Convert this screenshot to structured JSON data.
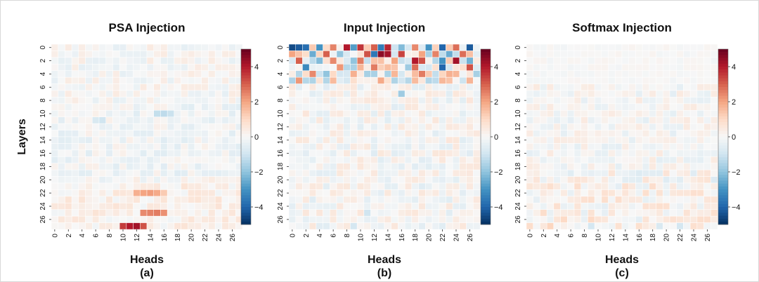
{
  "figure": {
    "ylabel_shared": "Layers",
    "colorbar_ticks": [
      "4",
      "2",
      "0",
      "−2",
      "−4"
    ],
    "colorbar_range": [
      -5,
      5
    ],
    "colormap": [
      "#053061",
      "#2166ac",
      "#4393c3",
      "#92c5de",
      "#d1e5f0",
      "#f7f7f7",
      "#fddbc7",
      "#f4a582",
      "#d6604d",
      "#b2182b",
      "#67001f"
    ]
  },
  "chart_data": [
    {
      "type": "heatmap",
      "title": "PSA Injection",
      "xlabel": "Heads",
      "sublabel": "(a)",
      "ylabel": "Layers",
      "x_ticks": [
        "0",
        "2",
        "4",
        "6",
        "8",
        "10",
        "12",
        "14",
        "16",
        "18",
        "20",
        "22",
        "24",
        "26"
      ],
      "y_ticks": [
        "0",
        "2",
        "4",
        "6",
        "8",
        "10",
        "12",
        "14",
        "16",
        "18",
        "20",
        "22",
        "24",
        "26"
      ],
      "rows": 28,
      "cols": 28,
      "value_range": [
        -5,
        5
      ],
      "cells": [
        {
          "layer": 27,
          "head": 10,
          "value": 3.5
        },
        {
          "layer": 27,
          "head": 11,
          "value": 4.0
        },
        {
          "layer": 27,
          "head": 12,
          "value": 4.2
        },
        {
          "layer": 27,
          "head": 13,
          "value": 3.2
        },
        {
          "layer": 25,
          "head": 13,
          "value": 2.4
        },
        {
          "layer": 25,
          "head": 14,
          "value": 2.5
        },
        {
          "layer": 25,
          "head": 15,
          "value": 2.6
        },
        {
          "layer": 25,
          "head": 16,
          "value": 2.3
        },
        {
          "layer": 22,
          "head": 12,
          "value": 1.8
        },
        {
          "layer": 22,
          "head": 13,
          "value": 2.0
        },
        {
          "layer": 22,
          "head": 14,
          "value": 2.1
        },
        {
          "layer": 22,
          "head": 15,
          "value": 1.9
        },
        {
          "layer": 22,
          "head": 16,
          "value": 1.3
        },
        {
          "layer": 10,
          "head": 15,
          "value": -1.2
        },
        {
          "layer": 10,
          "head": 16,
          "value": -1.3
        },
        {
          "layer": 10,
          "head": 17,
          "value": -1.1
        },
        {
          "layer": 11,
          "head": 7,
          "value": -1.0
        },
        {
          "layer": 11,
          "head": 6,
          "value": -0.8
        }
      ]
    },
    {
      "type": "heatmap",
      "title": "Input Injection",
      "xlabel": "Heads",
      "sublabel": "(b)",
      "x_ticks": [
        "0",
        "2",
        "4",
        "6",
        "8",
        "10",
        "12",
        "14",
        "16",
        "18",
        "20",
        "22",
        "24",
        "26"
      ],
      "y_ticks": [
        "0",
        "2",
        "4",
        "6",
        "8",
        "10",
        "12",
        "14",
        "16",
        "18",
        "20",
        "22",
        "24",
        "26"
      ],
      "rows": 28,
      "cols": 28,
      "value_range": [
        -5,
        5
      ],
      "cells": [
        {
          "layer": 0,
          "head": 0,
          "value": -4.5
        },
        {
          "layer": 0,
          "head": 1,
          "value": -4.2
        },
        {
          "layer": 0,
          "head": 2,
          "value": -3.8
        },
        {
          "layer": 0,
          "head": 4,
          "value": -3.0
        },
        {
          "layer": 0,
          "head": 6,
          "value": 2.5
        },
        {
          "layer": 0,
          "head": 8,
          "value": 4.0
        },
        {
          "layer": 0,
          "head": 9,
          "value": -2.8
        },
        {
          "layer": 0,
          "head": 10,
          "value": 3.6
        },
        {
          "layer": 0,
          "head": 12,
          "value": 3.0
        },
        {
          "layer": 0,
          "head": 13,
          "value": -3.5
        },
        {
          "layer": 0,
          "head": 14,
          "value": 3.8
        },
        {
          "layer": 0,
          "head": 16,
          "value": -2.2
        },
        {
          "layer": 0,
          "head": 18,
          "value": 2.4
        },
        {
          "layer": 0,
          "head": 20,
          "value": -3.0
        },
        {
          "layer": 0,
          "head": 22,
          "value": -4.0
        },
        {
          "layer": 0,
          "head": 24,
          "value": 2.8
        },
        {
          "layer": 0,
          "head": 26,
          "value": -4.2
        },
        {
          "layer": 1,
          "head": 0,
          "value": 2.0
        },
        {
          "layer": 1,
          "head": 3,
          "value": -2.5
        },
        {
          "layer": 1,
          "head": 5,
          "value": 3.0
        },
        {
          "layer": 1,
          "head": 7,
          "value": -2.0
        },
        {
          "layer": 1,
          "head": 11,
          "value": 3.2
        },
        {
          "layer": 1,
          "head": 12,
          "value": -3.6
        },
        {
          "layer": 1,
          "head": 13,
          "value": 4.5
        },
        {
          "layer": 1,
          "head": 14,
          "value": 4.2
        },
        {
          "layer": 1,
          "head": 16,
          "value": 3.4
        },
        {
          "layer": 1,
          "head": 19,
          "value": 2.0
        },
        {
          "layer": 1,
          "head": 21,
          "value": 2.5
        },
        {
          "layer": 1,
          "head": 23,
          "value": -2.5
        },
        {
          "layer": 1,
          "head": 25,
          "value": 2.8
        },
        {
          "layer": 2,
          "head": 1,
          "value": 3.0
        },
        {
          "layer": 2,
          "head": 4,
          "value": -2.2
        },
        {
          "layer": 2,
          "head": 6,
          "value": 2.4
        },
        {
          "layer": 2,
          "head": 9,
          "value": -2.0
        },
        {
          "layer": 2,
          "head": 10,
          "value": 2.6
        },
        {
          "layer": 2,
          "head": 15,
          "value": 2.0
        },
        {
          "layer": 2,
          "head": 18,
          "value": 4.0
        },
        {
          "layer": 2,
          "head": 19,
          "value": 3.2
        },
        {
          "layer": 2,
          "head": 22,
          "value": -3.0
        },
        {
          "layer": 2,
          "head": 24,
          "value": 4.2
        },
        {
          "layer": 2,
          "head": 26,
          "value": -2.4
        },
        {
          "layer": 3,
          "head": 2,
          "value": -3.2
        },
        {
          "layer": 3,
          "head": 7,
          "value": 2.2
        },
        {
          "layer": 3,
          "head": 12,
          "value": 2.6
        },
        {
          "layer": 3,
          "head": 17,
          "value": -1.8
        },
        {
          "layer": 3,
          "head": 18,
          "value": 2.8
        },
        {
          "layer": 3,
          "head": 22,
          "value": -4.0
        },
        {
          "layer": 3,
          "head": 26,
          "value": 3.2
        },
        {
          "layer": 4,
          "head": 3,
          "value": 2.4
        },
        {
          "layer": 4,
          "head": 5,
          "value": -2.0
        },
        {
          "layer": 4,
          "head": 9,
          "value": 1.8
        },
        {
          "layer": 4,
          "head": 14,
          "value": -1.6
        },
        {
          "layer": 4,
          "head": 19,
          "value": 2.6
        },
        {
          "layer": 4,
          "head": 23,
          "value": 1.8
        },
        {
          "layer": 5,
          "head": 1,
          "value": 2.2
        },
        {
          "layer": 5,
          "head": 6,
          "value": 1.6
        },
        {
          "layer": 5,
          "head": 13,
          "value": 1.9
        },
        {
          "layer": 5,
          "head": 20,
          "value": -1.5
        },
        {
          "layer": 5,
          "head": 26,
          "value": 1.7
        },
        {
          "layer": 7,
          "head": 16,
          "value": -1.8
        },
        {
          "layer": 25,
          "head": 11,
          "value": -1.0
        },
        {
          "layer": 27,
          "head": 9,
          "value": -0.9
        }
      ]
    },
    {
      "type": "heatmap",
      "title": "Softmax Injection",
      "xlabel": "Heads",
      "sublabel": "(c)",
      "x_ticks": [
        "0",
        "2",
        "4",
        "6",
        "8",
        "10",
        "12",
        "14",
        "16",
        "18",
        "20",
        "22",
        "24",
        "26"
      ],
      "y_ticks": [
        "0",
        "2",
        "4",
        "6",
        "8",
        "10",
        "12",
        "14",
        "16",
        "18",
        "20",
        "22",
        "24",
        "26"
      ],
      "rows": 28,
      "cols": 28,
      "value_range": [
        -5,
        5
      ],
      "cells": [
        {
          "layer": 25,
          "head": 2,
          "value": 0.9
        },
        {
          "layer": 26,
          "head": 5,
          "value": 1.0
        },
        {
          "layer": 27,
          "head": 3,
          "value": 1.1
        },
        {
          "layer": 26,
          "head": 9,
          "value": 1.0
        },
        {
          "layer": 27,
          "head": 9,
          "value": -0.9
        },
        {
          "layer": 21,
          "head": 14,
          "value": 0.8
        },
        {
          "layer": 27,
          "head": 19,
          "value": -0.8
        },
        {
          "layer": 27,
          "head": 22,
          "value": -0.9
        },
        {
          "layer": 24,
          "head": 20,
          "value": 0.8
        },
        {
          "layer": 23,
          "head": 8,
          "value": 0.8
        }
      ]
    }
  ]
}
